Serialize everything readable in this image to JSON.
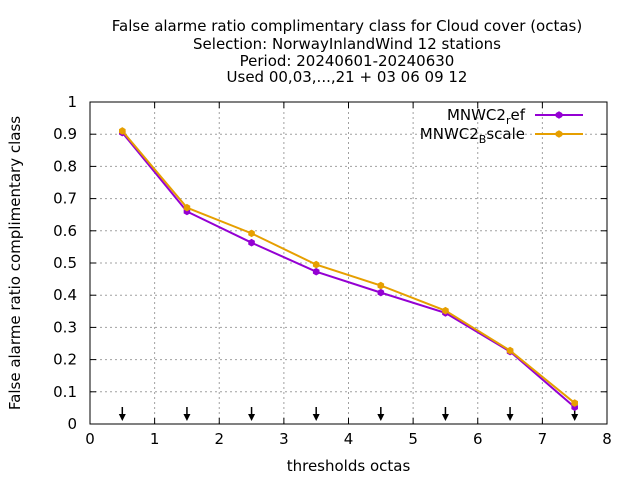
{
  "chart_data": {
    "type": "line",
    "title_lines": [
      "False alarme ratio complimentary class  for Cloud cover (octas)",
      "Selection: NorwayInlandWind     12 stations",
      "Period: 20240601-20240630",
      "Used 00,03,...,21 + 03 06 09 12"
    ],
    "xlabel": "thresholds octas",
    "ylabel": "False alarme ratio complimentary class",
    "xlim": [
      0,
      8
    ],
    "ylim": [
      0,
      1
    ],
    "xticks": [
      "0",
      "1",
      "2",
      "3",
      "4",
      "5",
      "6",
      "7",
      "8"
    ],
    "yticks": [
      "0",
      "0.1",
      "0.2",
      "0.3",
      "0.4",
      "0.5",
      "0.6",
      "0.7",
      "0.8",
      "0.9",
      "1"
    ],
    "grid": true,
    "legend_position": "top-right",
    "x": [
      0.5,
      1.5,
      2.5,
      3.5,
      4.5,
      5.5,
      6.5,
      7.5
    ],
    "series": [
      {
        "name": "MNWC2_ref",
        "legend_base": "MNWC2",
        "legend_sub": "r",
        "legend_tail": "ef",
        "color": "#9400d3",
        "values": [
          0.905,
          0.66,
          0.563,
          0.473,
          0.408,
          0.345,
          0.225,
          0.052
        ]
      },
      {
        "name": "MNWC2_Bscale",
        "legend_base": "MNWC2",
        "legend_sub": "B",
        "legend_tail": "scale",
        "color": "#e69f00",
        "values": [
          0.91,
          0.672,
          0.592,
          0.495,
          0.43,
          0.352,
          0.228,
          0.065
        ]
      }
    ],
    "arrow_markers_x": [
      0.5,
      1.5,
      2.5,
      3.5,
      4.5,
      5.5,
      6.5,
      7.5
    ]
  }
}
